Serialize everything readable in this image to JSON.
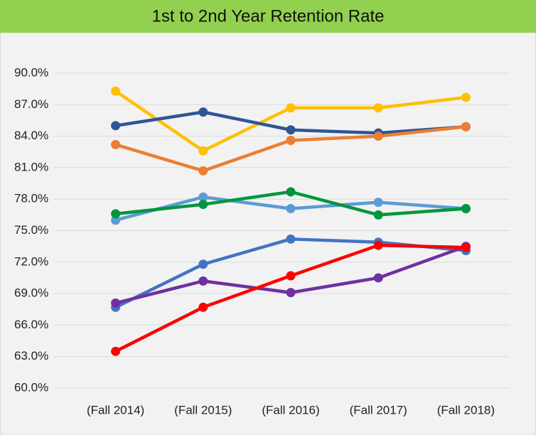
{
  "chart_data": {
    "type": "line",
    "title": "1st to 2nd Year Retention Rate",
    "categories": [
      "(Fall 2014)",
      "(Fall 2015)",
      "(Fall 2016)",
      "(Fall 2017)",
      "(Fall 2018)"
    ],
    "series": [
      {
        "color": "#ffc000",
        "values": [
          88.3,
          82.6,
          86.7,
          86.7,
          87.7
        ]
      },
      {
        "color": "#2f5597",
        "values": [
          85.0,
          86.3,
          84.6,
          84.3,
          84.9
        ]
      },
      {
        "color": "#ed7d31",
        "values": [
          83.2,
          80.7,
          83.6,
          84.0,
          84.9
        ]
      },
      {
        "color": "#5b9bd5",
        "values": [
          76.0,
          78.2,
          77.1,
          77.7,
          77.1
        ]
      },
      {
        "color": "#00963f",
        "values": [
          76.6,
          77.5,
          78.7,
          76.5,
          77.1
        ]
      },
      {
        "color": "#4472c4",
        "values": [
          67.7,
          71.8,
          74.2,
          73.9,
          73.1
        ]
      },
      {
        "color": "#7030a0",
        "values": [
          68.1,
          70.2,
          69.1,
          70.5,
          73.5
        ]
      },
      {
        "color": "#ff0000",
        "values": [
          63.5,
          67.7,
          70.7,
          73.6,
          73.4
        ]
      }
    ],
    "ylim": [
      60,
      90
    ],
    "yticks": [
      {
        "value": 60,
        "label": "60.0%"
      },
      {
        "value": 63,
        "label": "63.0%"
      },
      {
        "value": 66,
        "label": "66.0%"
      },
      {
        "value": 69,
        "label": "69.0%"
      },
      {
        "value": 72,
        "label": "72.0%"
      },
      {
        "value": 75,
        "label": "75.0%"
      },
      {
        "value": 78,
        "label": "78.0%"
      },
      {
        "value": 81,
        "label": "81.0%"
      },
      {
        "value": 84,
        "label": "84.0%"
      },
      {
        "value": 87,
        "label": "87.0%"
      },
      {
        "value": 90,
        "label": "90.0%"
      }
    ],
    "grid": true
  }
}
